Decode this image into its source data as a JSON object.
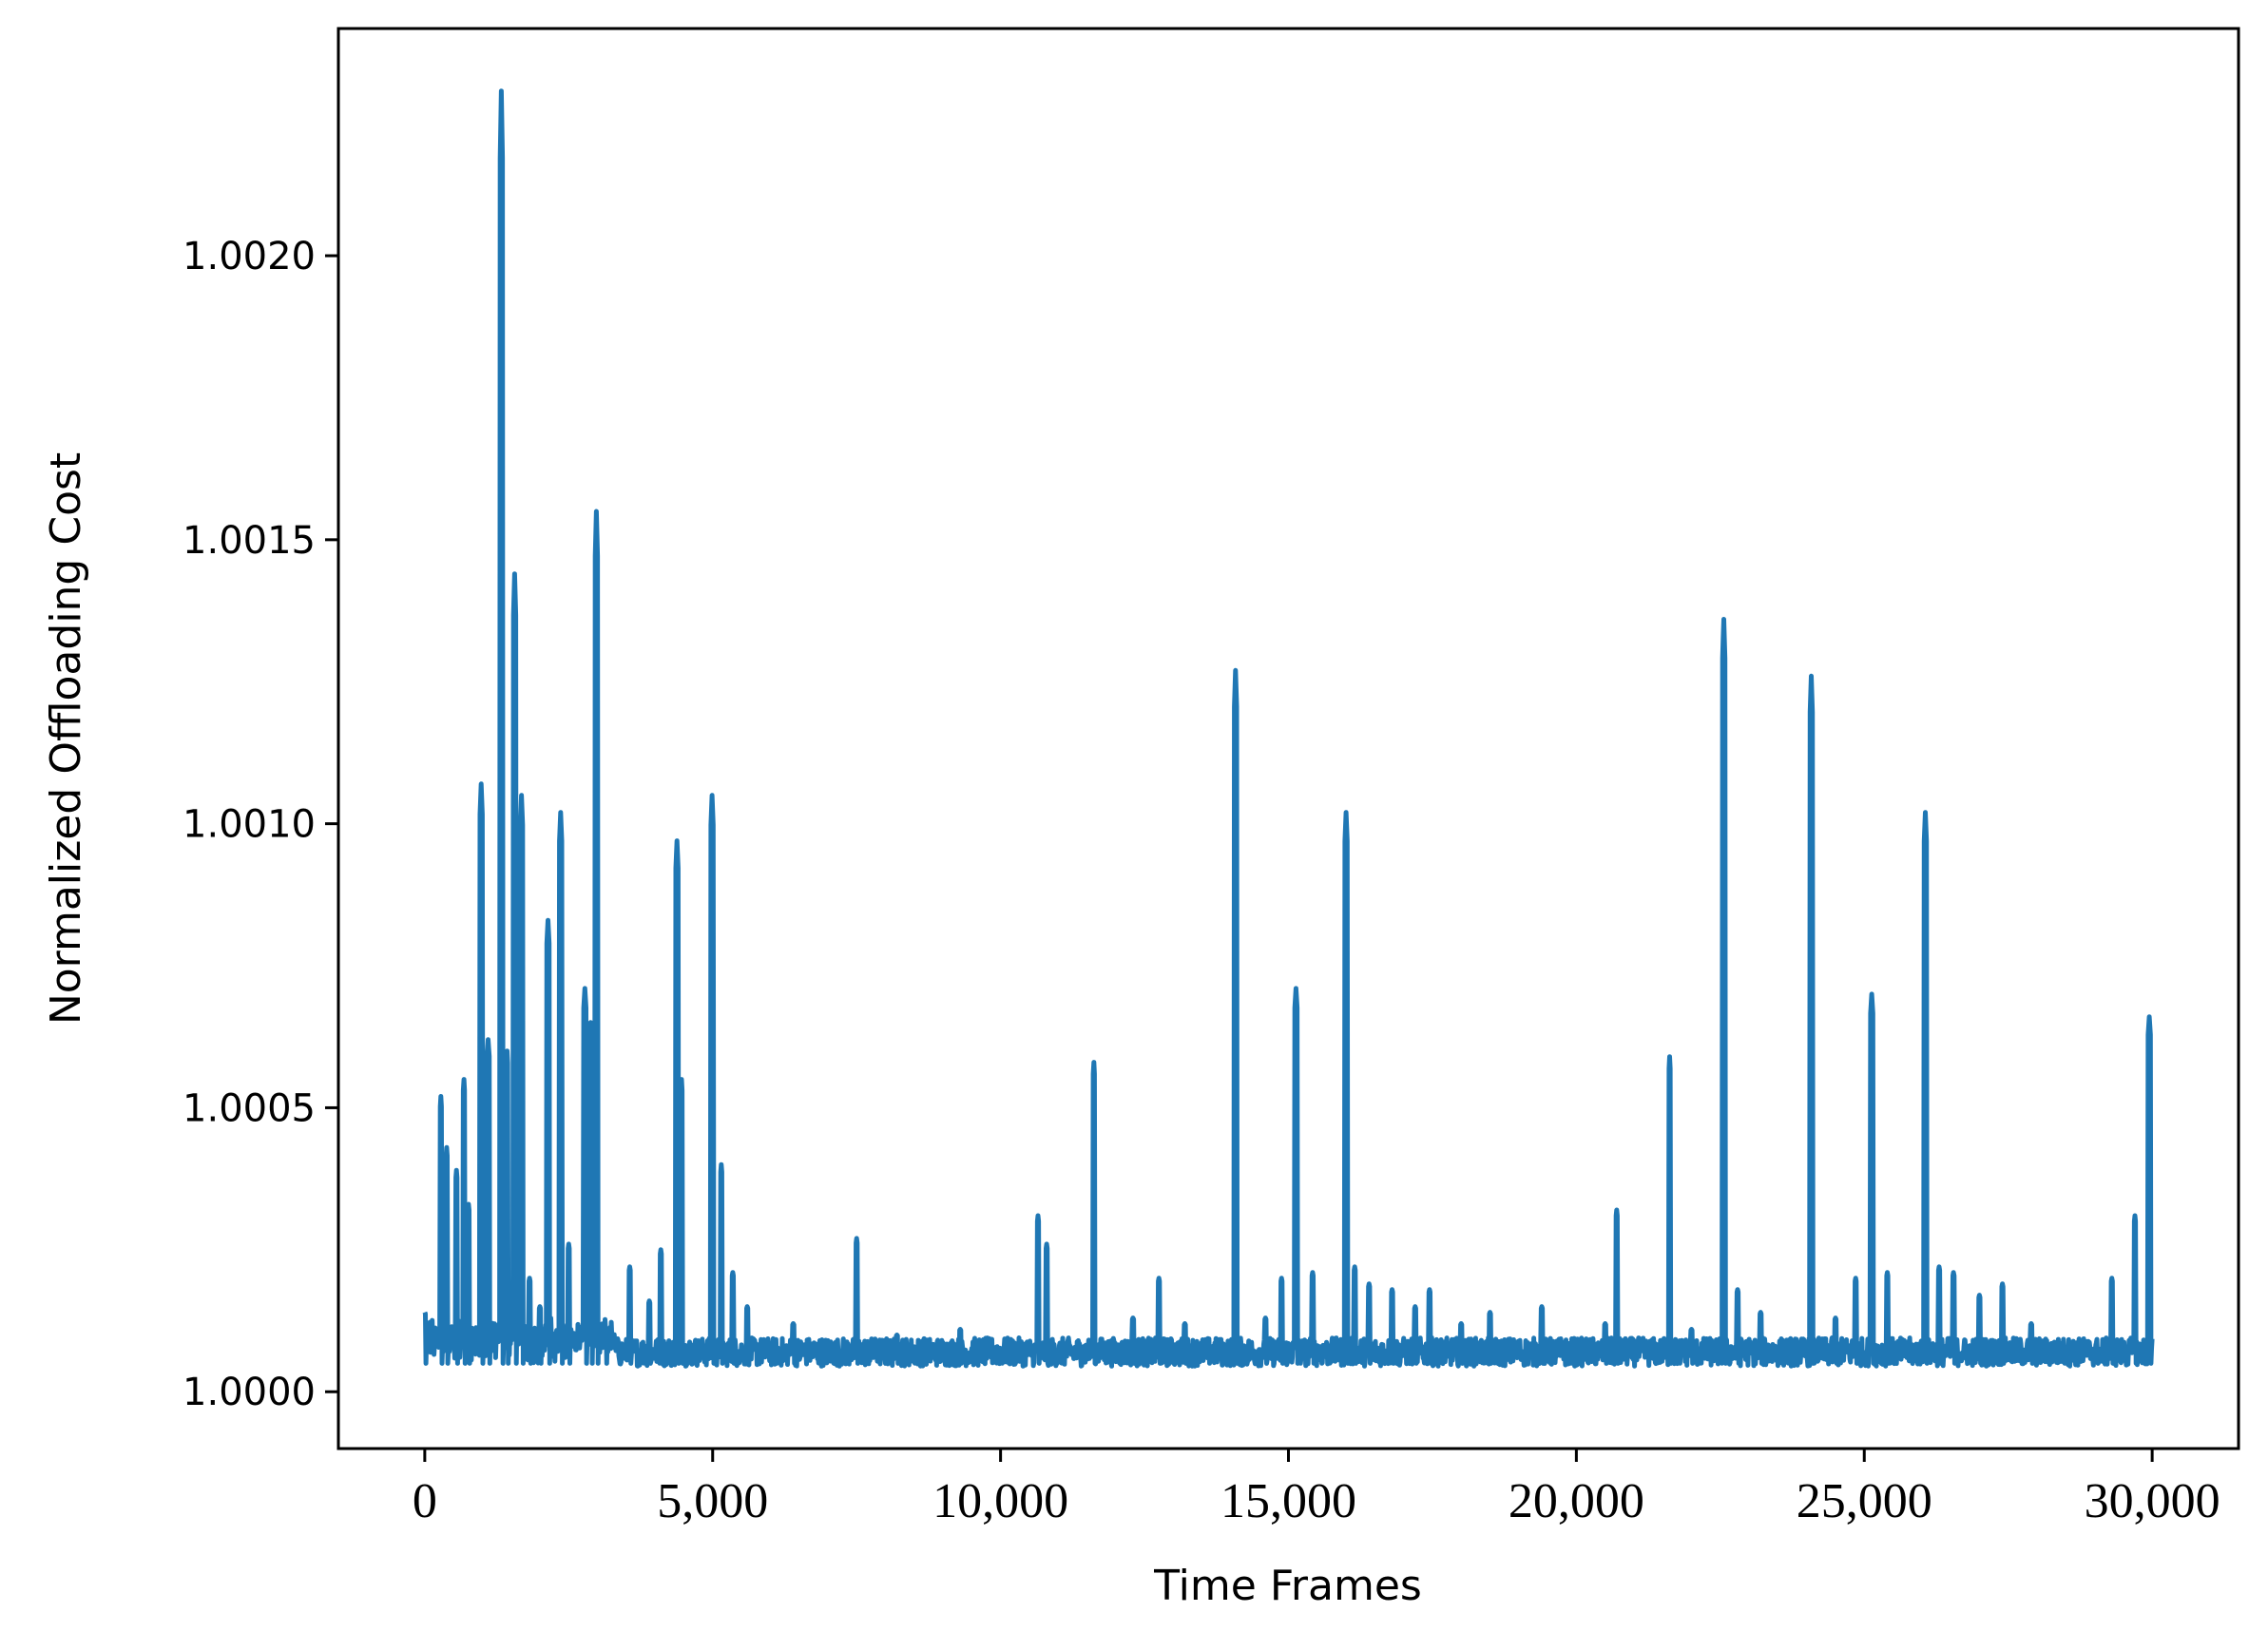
{
  "chart_data": {
    "type": "line",
    "title": "",
    "xlabel": "Time Frames",
    "ylabel": "Normalized Offloading Cost",
    "xlim": [
      -1500,
      31500
    ],
    "ylim": [
      0.9999,
      1.0024
    ],
    "x_ticks": [
      0,
      5000,
      10000,
      15000,
      20000,
      25000,
      30000
    ],
    "x_tick_labels": [
      "0",
      "5,000",
      "10,000",
      "15,000",
      "20,000",
      "25,000",
      "30,000"
    ],
    "y_ticks": [
      1.0,
      1.0005,
      1.001,
      1.0015,
      1.002
    ],
    "y_tick_labels": [
      "1.0000",
      "1.0005",
      "1.0010",
      "1.0015",
      "1.0020"
    ],
    "grid": false,
    "legend": "none",
    "line_color": "#1f77b4",
    "baseline": 1.00007,
    "series": [
      {
        "peaks": [
          [
            0,
            1.00014
          ],
          [
            280,
            1.00052
          ],
          [
            380,
            1.00043
          ],
          [
            550,
            1.00039
          ],
          [
            680,
            1.00055
          ],
          [
            760,
            1.00033
          ],
          [
            980,
            1.00107
          ],
          [
            1100,
            1.00062
          ],
          [
            1330,
            1.00229
          ],
          [
            1430,
            1.0006
          ],
          [
            1560,
            1.00144
          ],
          [
            1680,
            1.00105
          ],
          [
            1820,
            1.0002
          ],
          [
            2000,
            1.00015
          ],
          [
            2140,
            1.00083
          ],
          [
            2360,
            1.00102
          ],
          [
            2500,
            1.00026
          ],
          [
            2780,
            1.00071
          ],
          [
            2880,
            1.00065
          ],
          [
            2980,
            1.00155
          ],
          [
            3140,
            1.00011
          ],
          [
            3560,
            1.00022
          ],
          [
            3900,
            1.00016
          ],
          [
            4100,
            1.00025
          ],
          [
            4380,
            1.00097
          ],
          [
            4460,
            1.00055
          ],
          [
            4990,
            1.00105
          ],
          [
            5150,
            1.0004
          ],
          [
            5350,
            1.00021
          ],
          [
            5600,
            1.00015
          ],
          [
            6400,
            1.00012
          ],
          [
            7500,
            1.00027
          ],
          [
            8200,
            1.0001
          ],
          [
            9300,
            1.00011
          ],
          [
            10650,
            1.00031
          ],
          [
            10800,
            1.00026
          ],
          [
            11620,
            1.00058
          ],
          [
            12300,
            1.00013
          ],
          [
            12750,
            1.0002
          ],
          [
            13200,
            1.00012
          ],
          [
            14080,
            1.00127
          ],
          [
            14600,
            1.00013
          ],
          [
            14880,
            1.0002
          ],
          [
            15130,
            1.00071
          ],
          [
            15420,
            1.00021
          ],
          [
            16000,
            1.00102
          ],
          [
            16150,
            1.00022
          ],
          [
            16400,
            1.00019
          ],
          [
            16800,
            1.00018
          ],
          [
            17200,
            1.00015
          ],
          [
            17450,
            1.00018
          ],
          [
            18000,
            1.00012
          ],
          [
            18500,
            1.00014
          ],
          [
            19400,
            1.00015
          ],
          [
            20500,
            1.00012
          ],
          [
            20700,
            1.00032
          ],
          [
            21620,
            1.00059
          ],
          [
            22000,
            1.00011
          ],
          [
            22560,
            1.00136
          ],
          [
            22800,
            1.00018
          ],
          [
            23200,
            1.00014
          ],
          [
            24080,
            1.00126
          ],
          [
            24500,
            1.00013
          ],
          [
            24850,
            1.0002
          ],
          [
            25130,
            1.0007
          ],
          [
            25400,
            1.00021
          ],
          [
            26060,
            1.00102
          ],
          [
            26300,
            1.00022
          ],
          [
            26550,
            1.00021
          ],
          [
            27000,
            1.00017
          ],
          [
            27400,
            1.00019
          ],
          [
            27900,
            1.00012
          ],
          [
            29300,
            1.0002
          ],
          [
            29700,
            1.00031
          ],
          [
            29950,
            1.00066
          ]
        ]
      }
    ]
  }
}
